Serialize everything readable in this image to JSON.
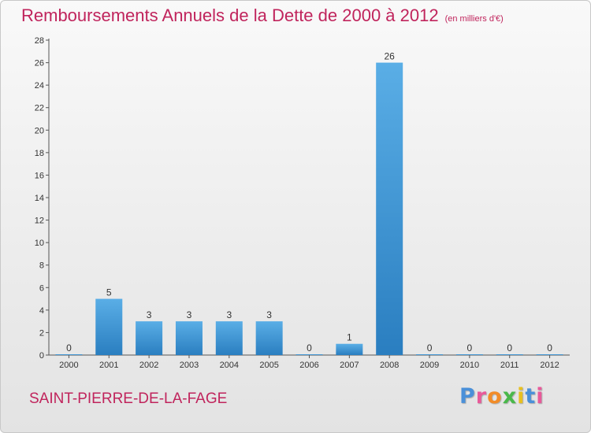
{
  "title": "Remboursements Annuels de la Dette de 2000 à 2012",
  "subtitle": "(en milliers d'€)",
  "commune": "SAINT-PIERRE-DE-LA-FAGE",
  "logo": "Proxiti",
  "colors": {
    "title": "#c0245c",
    "bar_top": "#5aaee6",
    "bar_bottom": "#2a7ec0",
    "logo_letters": [
      "#4a90d9",
      "#e85a9a",
      "#f28c28",
      "#49b84a",
      "#e8c020",
      "#4a90d9",
      "#e85a9a"
    ]
  },
  "chart_data": {
    "type": "bar",
    "categories": [
      "2000",
      "2001",
      "2002",
      "2003",
      "2004",
      "2005",
      "2006",
      "2007",
      "2008",
      "2009",
      "2010",
      "2011",
      "2012"
    ],
    "values": [
      0,
      5,
      3,
      3,
      3,
      3,
      0,
      1,
      26,
      0,
      0,
      0,
      0
    ],
    "ylim": [
      0,
      28
    ],
    "yticks": [
      0,
      2,
      4,
      6,
      8,
      10,
      12,
      14,
      16,
      18,
      20,
      22,
      24,
      26,
      28
    ],
    "grid": false,
    "data_labels": true
  }
}
